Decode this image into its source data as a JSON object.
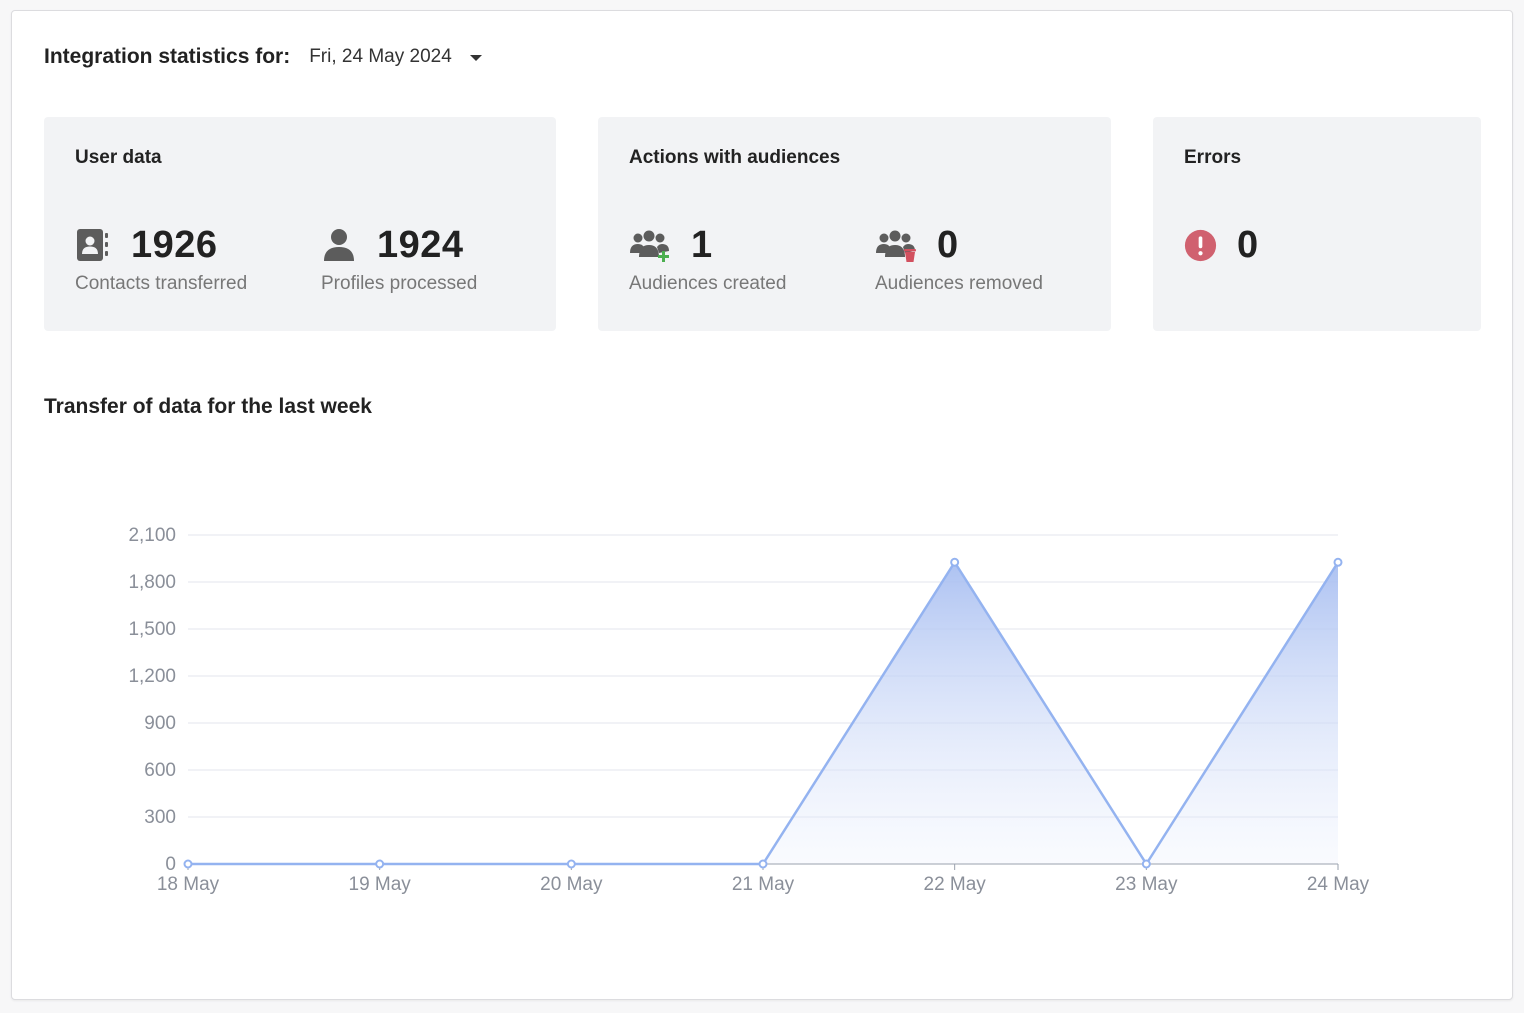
{
  "header": {
    "title": "Integration statistics for:",
    "date_value": "Fri, 24 May 2024"
  },
  "cards": {
    "user_data": {
      "title": "User data",
      "contacts": {
        "value": "1926",
        "label": "Contacts transferred",
        "icon": "contacts-book-icon"
      },
      "profiles": {
        "value": "1924",
        "label": "Profiles processed",
        "icon": "user-icon"
      }
    },
    "audiences": {
      "title": "Actions with audiences",
      "created": {
        "value": "1",
        "label": "Audiences created",
        "icon": "audience-add-icon"
      },
      "removed": {
        "value": "0",
        "label": "Audiences removed",
        "icon": "audience-remove-icon"
      }
    },
    "errors": {
      "title": "Errors",
      "count": {
        "value": "0",
        "icon": "error-icon"
      }
    }
  },
  "colors": {
    "icon_gray": "#5c5c5c",
    "add_green": "#4caf50",
    "remove_red": "#d2505f",
    "error_red": "#d0616f",
    "card_bg": "#f2f3f5",
    "line": "#94b3f0",
    "area_top": "#aec2f2"
  },
  "chart_section": {
    "title": "Transfer of data for the last week"
  },
  "chart_data": {
    "type": "area",
    "title": "Transfer of data for the last week",
    "x": [
      "18 May",
      "19 May",
      "20 May",
      "21 May",
      "22 May",
      "23 May",
      "24 May"
    ],
    "series": [
      {
        "values": [
          0,
          0,
          0,
          0,
          1926,
          0,
          1926
        ]
      }
    ],
    "ylim": [
      0,
      2100
    ],
    "yticks": [
      "0",
      "300",
      "600",
      "900",
      "1,200",
      "1,500",
      "1,800",
      "2,100"
    ],
    "grid": true,
    "legend": false
  }
}
